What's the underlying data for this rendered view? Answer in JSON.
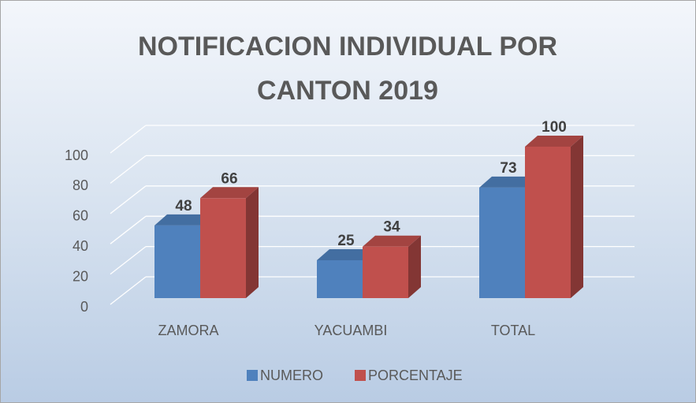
{
  "chart_data": {
    "type": "bar3d",
    "title": "NOTIFICACION INDIVIDUAL POR CANTON 2019",
    "categories": [
      "ZAMORA",
      "YACUAMBI",
      "TOTAL"
    ],
    "series": [
      {
        "name": "NUMERO",
        "color": "#4f81bd",
        "values": [
          48,
          25,
          73
        ]
      },
      {
        "name": "PORCENTAJE",
        "color": "#c0504d",
        "values": [
          66,
          34,
          100
        ]
      }
    ],
    "ylim": [
      0,
      100
    ],
    "yticks": [
      0,
      20,
      40,
      60,
      80,
      100
    ],
    "grid": true,
    "legend": "bottom"
  }
}
